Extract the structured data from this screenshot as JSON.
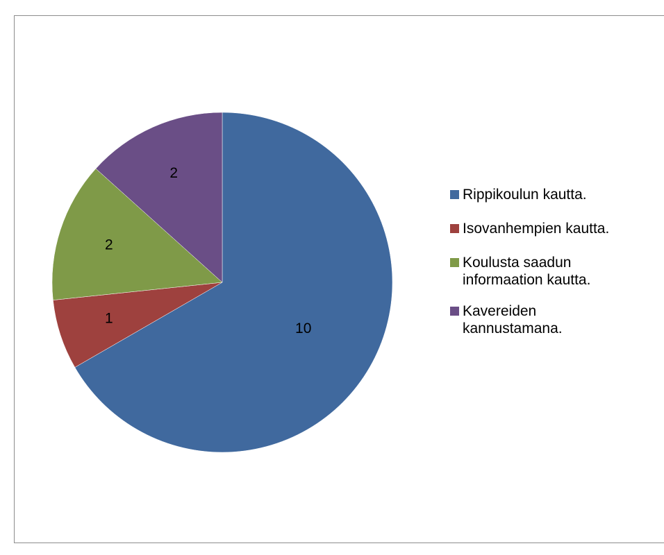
{
  "chart_data": {
    "type": "pie",
    "categories": [
      "Rippikoulun kautta.",
      "Isovanhempien kautta.",
      "Koulusta saadun informaation kautta.",
      "Kavereiden kannustamana."
    ],
    "values": [
      10,
      1,
      2,
      2
    ],
    "colors": [
      "#40699e",
      "#9e413e",
      "#7f9a48",
      "#6a4e86"
    ],
    "legend": "right"
  }
}
